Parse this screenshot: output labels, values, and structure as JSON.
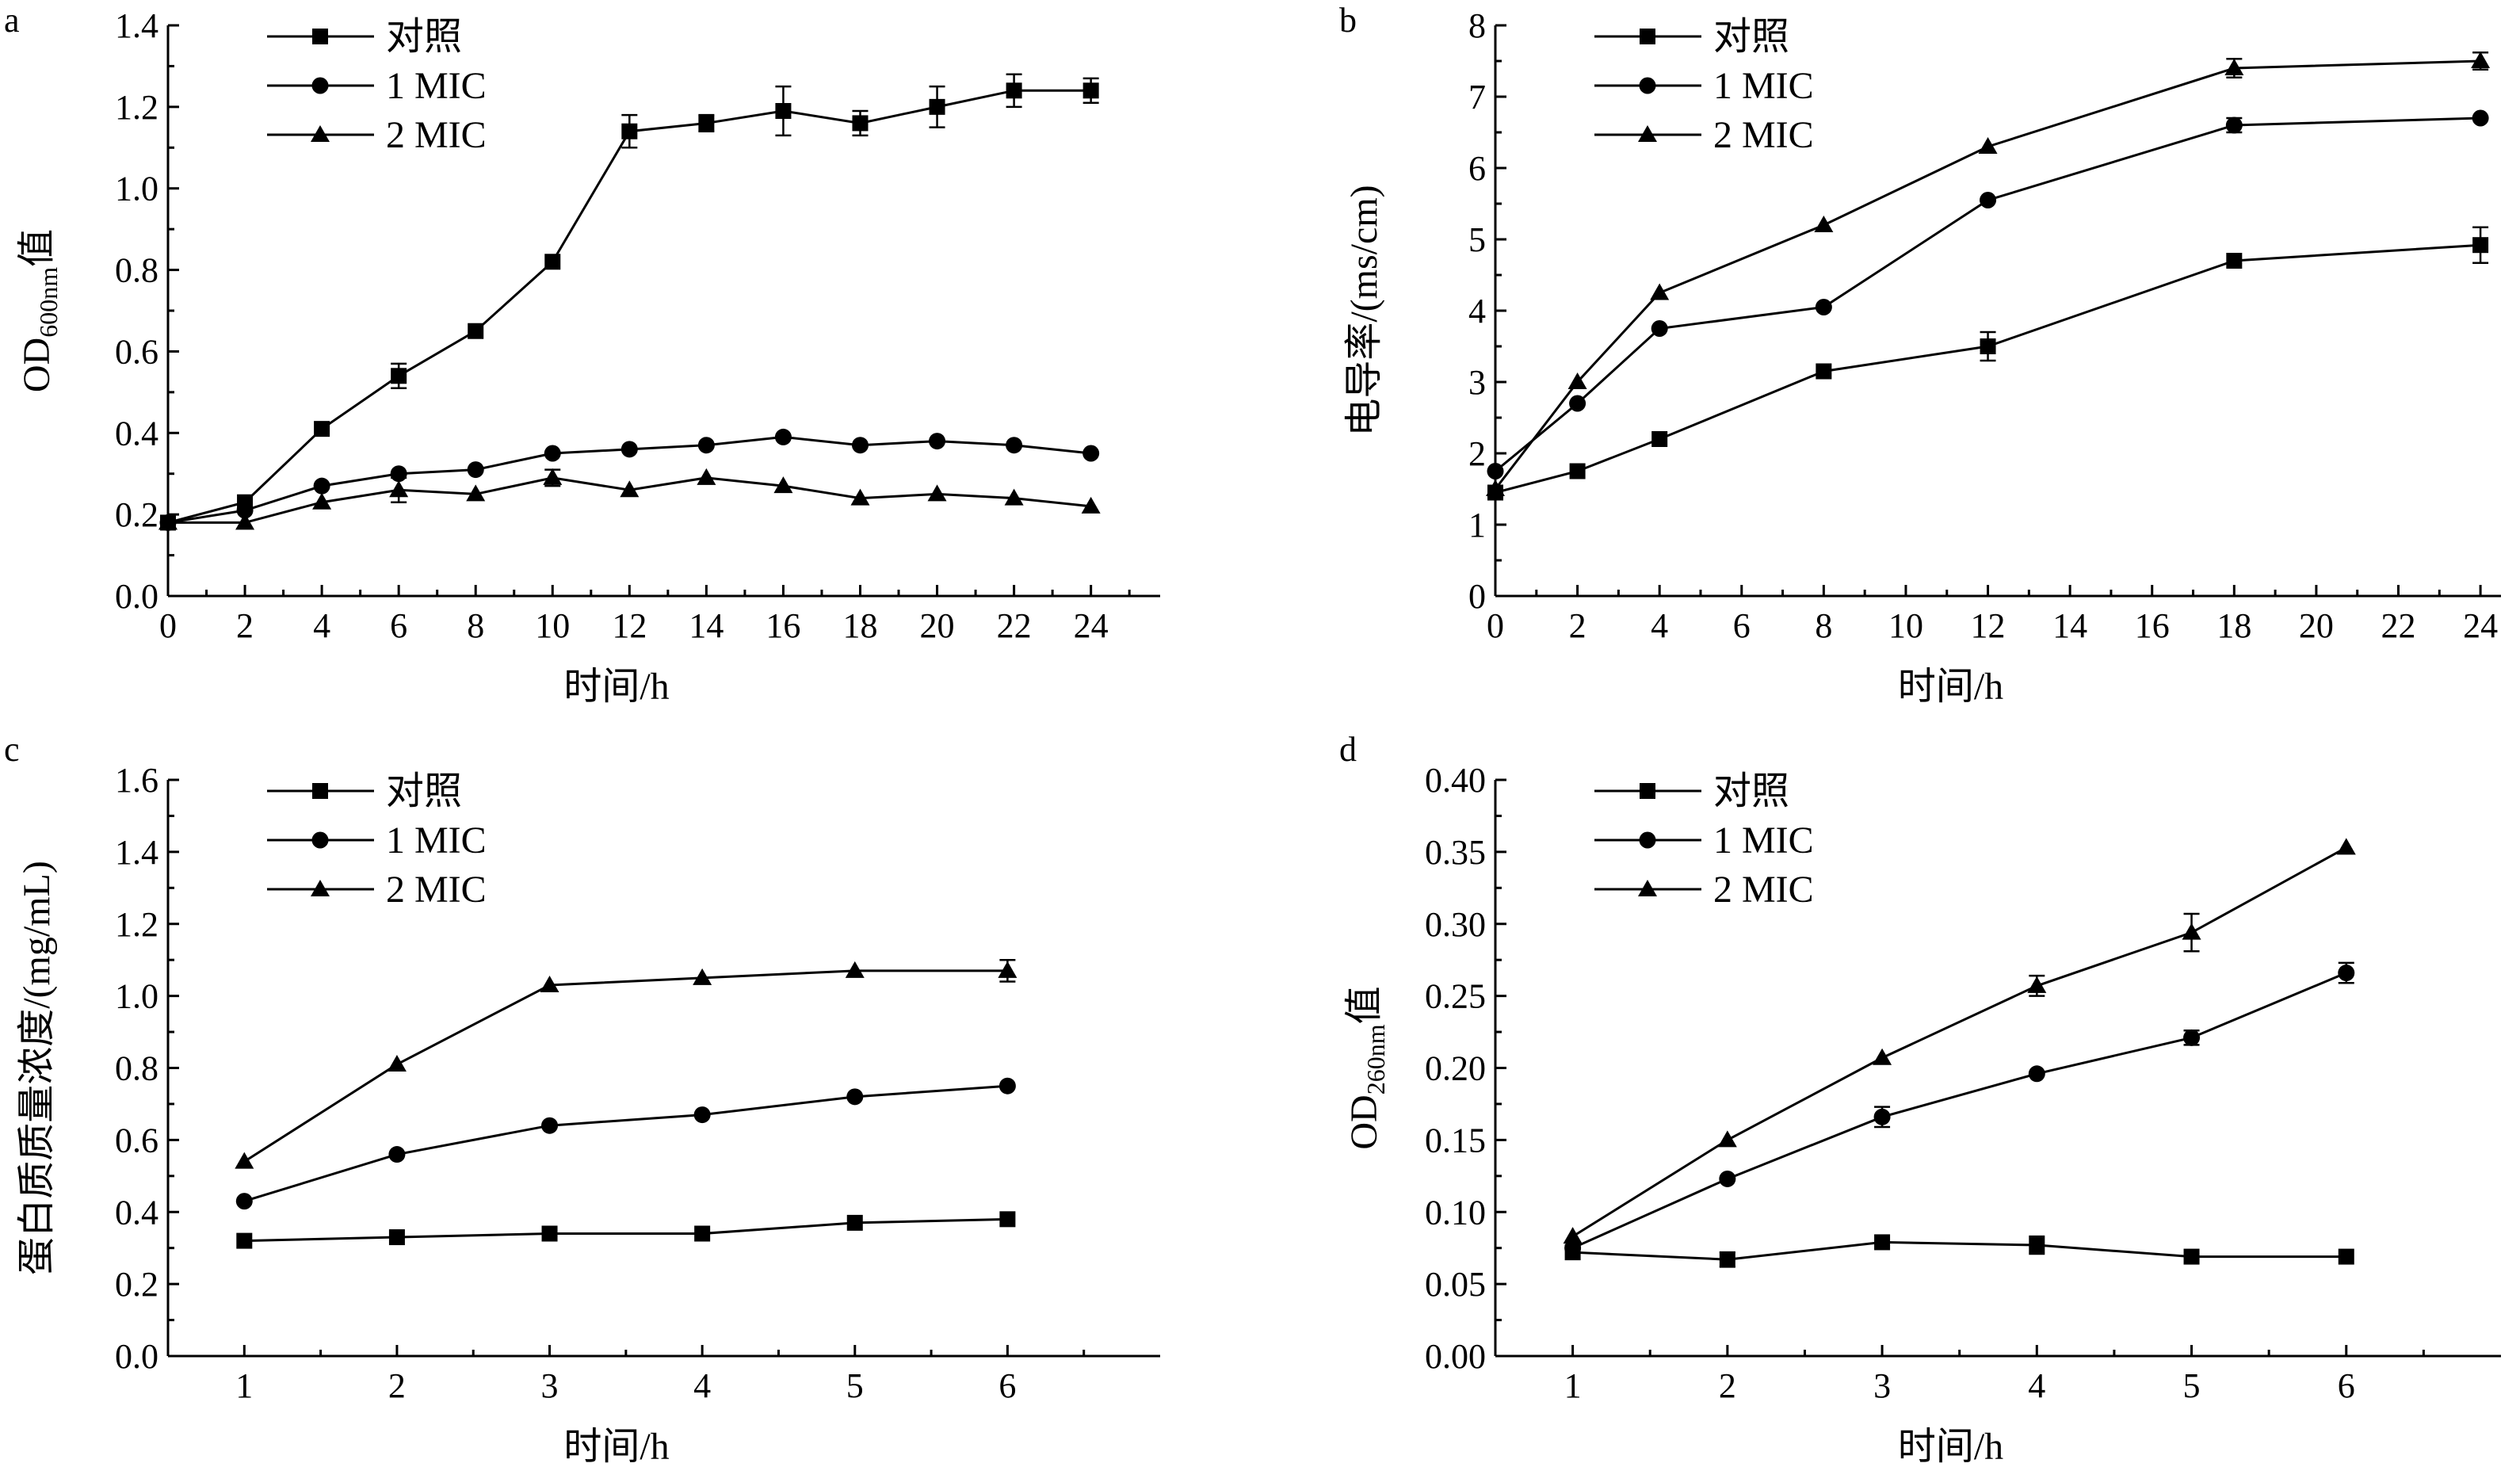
{
  "chart_data": [
    {
      "panel": "a",
      "type": "line",
      "xlabel": "时间/h",
      "ylabel": {
        "main": "OD",
        "sub": "600nm",
        "suffix": "值"
      },
      "xlim": [
        0,
        25.8
      ],
      "ylim": [
        0,
        1.4
      ],
      "xticks": [
        0,
        2,
        4,
        6,
        8,
        10,
        12,
        14,
        16,
        18,
        20,
        22,
        24
      ],
      "yticks": [
        "0.0",
        "0.2",
        "0.4",
        "0.6",
        "0.8",
        "1.0",
        "1.2",
        "1.4"
      ],
      "legend_position": "top-left",
      "series": [
        {
          "name": "对照",
          "marker": "square",
          "x": [
            0,
            2,
            4,
            6,
            8,
            10,
            12,
            14,
            16,
            18,
            20,
            22,
            24
          ],
          "y": [
            0.18,
            0.23,
            0.41,
            0.54,
            0.65,
            0.82,
            1.14,
            1.16,
            1.19,
            1.16,
            1.2,
            1.24,
            1.24
          ],
          "err": [
            0,
            0,
            0,
            0.03,
            0,
            0,
            0.04,
            0.02,
            0.06,
            0.03,
            0.05,
            0.04,
            0.03
          ]
        },
        {
          "name": "1 MIC",
          "marker": "circle",
          "x": [
            0,
            2,
            4,
            6,
            8,
            10,
            12,
            14,
            16,
            18,
            20,
            22,
            24
          ],
          "y": [
            0.18,
            0.21,
            0.27,
            0.3,
            0.31,
            0.35,
            0.36,
            0.37,
            0.39,
            0.37,
            0.38,
            0.37,
            0.35
          ],
          "err": [
            0,
            0,
            0,
            0,
            0,
            0,
            0,
            0,
            0,
            0,
            0,
            0,
            0
          ]
        },
        {
          "name": "2 MIC",
          "marker": "triangle",
          "x": [
            0,
            2,
            4,
            6,
            8,
            10,
            12,
            14,
            16,
            18,
            20,
            22,
            24
          ],
          "y": [
            0.18,
            0.18,
            0.23,
            0.26,
            0.25,
            0.29,
            0.26,
            0.29,
            0.27,
            0.24,
            0.25,
            0.24,
            0.22
          ],
          "err": [
            0,
            0,
            0,
            0.03,
            0,
            0.02,
            0,
            0,
            0,
            0,
            0,
            0,
            0
          ]
        }
      ]
    },
    {
      "panel": "b",
      "type": "line",
      "xlabel": "时间/h",
      "ylabel": {
        "main": "电导率/(ms/cm)",
        "sub": "",
        "suffix": ""
      },
      "xlim": [
        0,
        24.5
      ],
      "ylim": [
        0,
        8
      ],
      "xticks": [
        0,
        2,
        4,
        6,
        8,
        10,
        12,
        14,
        16,
        18,
        20,
        22,
        24
      ],
      "yticks": [
        "0",
        "1",
        "2",
        "3",
        "4",
        "5",
        "6",
        "7",
        "8"
      ],
      "legend_position": "top-left",
      "series": [
        {
          "name": "对照",
          "marker": "square",
          "x": [
            0,
            2,
            4,
            8,
            12,
            18,
            24
          ],
          "y": [
            1.45,
            1.75,
            2.2,
            3.15,
            3.5,
            4.7,
            4.92
          ],
          "err": [
            0,
            0,
            0,
            0,
            0.2,
            0,
            0.25
          ]
        },
        {
          "name": "1 MIC",
          "marker": "circle",
          "x": [
            0,
            2,
            4,
            8,
            12,
            18,
            24
          ],
          "y": [
            1.75,
            2.7,
            3.75,
            4.05,
            5.55,
            6.6,
            6.7
          ],
          "err": [
            0,
            0,
            0,
            0,
            0,
            0.1,
            0
          ]
        },
        {
          "name": "2 MIC",
          "marker": "triangle",
          "x": [
            0,
            2,
            4,
            8,
            12,
            18,
            24
          ],
          "y": [
            1.5,
            3.0,
            4.25,
            5.2,
            6.3,
            7.4,
            7.5
          ],
          "err": [
            0,
            0,
            0,
            0,
            0,
            0.13,
            0.12
          ]
        }
      ]
    },
    {
      "panel": "c",
      "type": "line",
      "xlabel": "时间/h",
      "ylabel": {
        "main": "蛋白质质量浓度/(mg/mL)",
        "sub": "",
        "suffix": ""
      },
      "xlim": [
        0.5,
        7.0
      ],
      "ylim": [
        0,
        1.6
      ],
      "xticks": [
        1,
        2,
        3,
        4,
        5,
        6
      ],
      "yticks": [
        "0.0",
        "0.2",
        "0.4",
        "0.6",
        "0.8",
        "1.0",
        "1.2",
        "1.4",
        "1.6"
      ],
      "legend_position": "top-left",
      "series": [
        {
          "name": "对照",
          "marker": "square",
          "x": [
            1,
            2,
            3,
            4,
            5,
            6
          ],
          "y": [
            0.32,
            0.33,
            0.34,
            0.34,
            0.37,
            0.38
          ],
          "err": [
            0,
            0,
            0,
            0,
            0,
            0
          ]
        },
        {
          "name": "1 MIC",
          "marker": "circle",
          "x": [
            1,
            2,
            3,
            4,
            5,
            6
          ],
          "y": [
            0.43,
            0.56,
            0.64,
            0.67,
            0.72,
            0.75
          ],
          "err": [
            0,
            0,
            0,
            0,
            0,
            0
          ]
        },
        {
          "name": "2 MIC",
          "marker": "triangle",
          "x": [
            1,
            2,
            3,
            4,
            5,
            6
          ],
          "y": [
            0.54,
            0.81,
            1.03,
            1.05,
            1.07,
            1.07
          ],
          "err": [
            0,
            0,
            0,
            0,
            0,
            0.03
          ]
        }
      ]
    },
    {
      "panel": "d",
      "type": "line",
      "xlabel": "时间/h",
      "ylabel": {
        "main": "OD",
        "sub": "260nm",
        "suffix": "值"
      },
      "xlim": [
        0.5,
        7.0
      ],
      "ylim": [
        0,
        0.4
      ],
      "xticks": [
        1,
        2,
        3,
        4,
        5,
        6
      ],
      "yticks": [
        "0.00",
        "0.05",
        "0.10",
        "0.15",
        "0.20",
        "0.25",
        "0.30",
        "0.35",
        "0.40"
      ],
      "legend_position": "top-left",
      "series": [
        {
          "name": "对照",
          "marker": "square",
          "x": [
            1,
            2,
            3,
            4,
            5,
            6
          ],
          "y": [
            0.072,
            0.067,
            0.079,
            0.077,
            0.069,
            0.069
          ],
          "err": [
            0,
            0.005,
            0,
            0.006,
            0,
            0
          ]
        },
        {
          "name": "1 MIC",
          "marker": "circle",
          "x": [
            1,
            2,
            3,
            4,
            5,
            6
          ],
          "y": [
            0.075,
            0.123,
            0.166,
            0.196,
            0.221,
            0.266
          ],
          "err": [
            0,
            0,
            0.007,
            0,
            0.005,
            0.007
          ]
        },
        {
          "name": "2 MIC",
          "marker": "triangle",
          "x": [
            1,
            2,
            3,
            4,
            5,
            6
          ],
          "y": [
            0.083,
            0.15,
            0.207,
            0.257,
            0.294,
            0.353
          ],
          "err": [
            0,
            0,
            0,
            0.007,
            0.013,
            0
          ]
        }
      ]
    }
  ]
}
